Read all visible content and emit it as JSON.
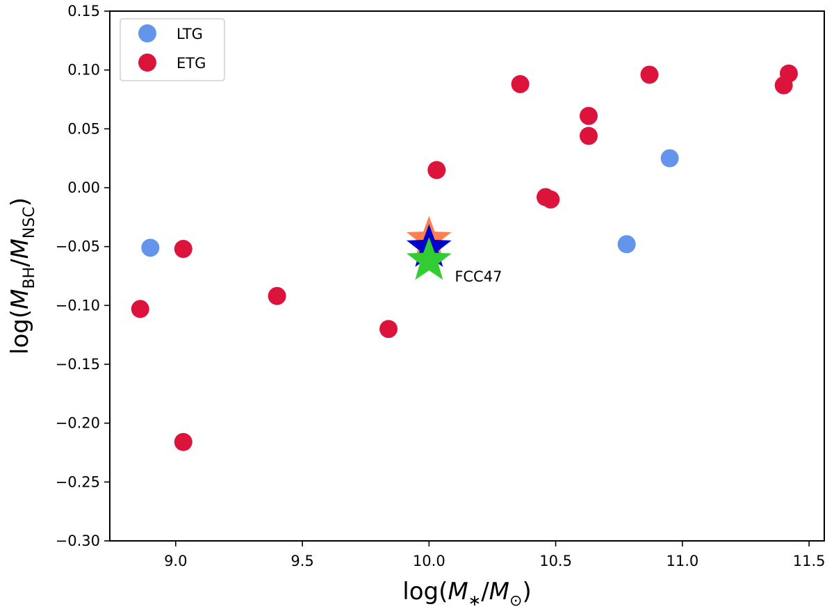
{
  "chart_data": {
    "type": "scatter",
    "xlabel": "log(M∗/M⊙)",
    "ylabel": "log(M_BH/M_NSC)",
    "xlim": [
      8.74,
      11.56
    ],
    "ylim": [
      -0.3,
      0.15
    ],
    "xticks": [
      {
        "value": 9.0,
        "label": "9.0"
      },
      {
        "value": 9.5,
        "label": "9.5"
      },
      {
        "value": 10.0,
        "label": "10.0"
      },
      {
        "value": 10.5,
        "label": "10.5"
      },
      {
        "value": 11.0,
        "label": "11.0"
      },
      {
        "value": 11.5,
        "label": "11.5"
      }
    ],
    "yticks": [
      {
        "value": 0.15,
        "label": "0.15"
      },
      {
        "value": 0.1,
        "label": "0.10"
      },
      {
        "value": 0.05,
        "label": "0.05"
      },
      {
        "value": 0.0,
        "label": "0.00"
      },
      {
        "value": -0.05,
        "label": "−0.05"
      },
      {
        "value": -0.1,
        "label": "−0.10"
      },
      {
        "value": -0.15,
        "label": "−0.15"
      },
      {
        "value": -0.2,
        "label": "−0.20"
      },
      {
        "value": -0.25,
        "label": "−0.25"
      },
      {
        "value": -0.3,
        "label": "−0.30"
      }
    ],
    "grid": false,
    "legend": {
      "placement": "top-left"
    },
    "series": [
      {
        "name": "LTG",
        "color": "#6495ED",
        "marker": "circle",
        "points": [
          {
            "x": 8.9,
            "y": -0.051
          },
          {
            "x": 10.78,
            "y": -0.048
          },
          {
            "x": 10.95,
            "y": 0.025
          }
        ]
      },
      {
        "name": "ETG",
        "color": "#DC143C",
        "marker": "circle",
        "points": [
          {
            "x": 8.86,
            "y": -0.103
          },
          {
            "x": 9.03,
            "y": -0.052
          },
          {
            "x": 9.03,
            "y": -0.216
          },
          {
            "x": 9.4,
            "y": -0.092
          },
          {
            "x": 9.84,
            "y": -0.12
          },
          {
            "x": 10.03,
            "y": 0.015
          },
          {
            "x": 10.36,
            "y": 0.088
          },
          {
            "x": 10.46,
            "y": -0.008
          },
          {
            "x": 10.48,
            "y": -0.01
          },
          {
            "x": 10.63,
            "y": 0.061
          },
          {
            "x": 10.63,
            "y": 0.044
          },
          {
            "x": 10.87,
            "y": 0.096
          },
          {
            "x": 11.4,
            "y": 0.087
          },
          {
            "x": 11.42,
            "y": 0.097
          }
        ]
      }
    ],
    "highlight": {
      "label": "FCC47",
      "x": 10.0,
      "stars": [
        {
          "y": -0.044,
          "color": "#FF7F50"
        },
        {
          "y": -0.051,
          "color": "#0000CD"
        },
        {
          "y": -0.062,
          "color": "#32CD32"
        }
      ]
    }
  }
}
